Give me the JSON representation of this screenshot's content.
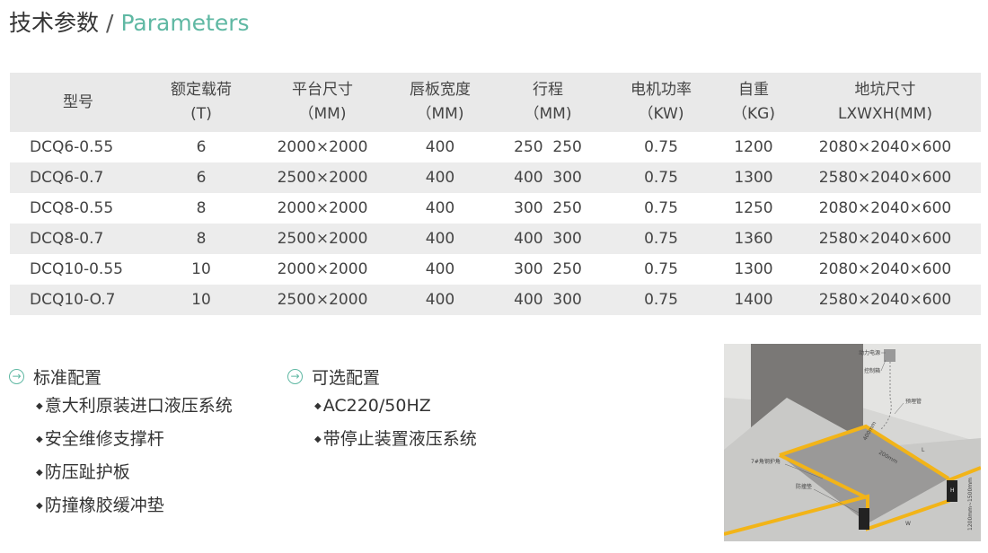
{
  "title": {
    "cn": "技术参数",
    "sep": "/",
    "en": "Parameters"
  },
  "table": {
    "headers": [
      {
        "l1": "型号",
        "l2": ""
      },
      {
        "l1": "额定载荷",
        "l2": "(T)"
      },
      {
        "l1": "平台尺寸",
        "l2": "（MM)"
      },
      {
        "l1": "唇板宽度",
        "l2": "（MM)"
      },
      {
        "l1": "行程",
        "l2": "（MM)"
      },
      {
        "l1": "电机功率",
        "l2": "（KW)"
      },
      {
        "l1": "自重",
        "l2": "（KG)"
      },
      {
        "l1": "地坑尺寸",
        "l2": "LXWXH(MM)"
      }
    ],
    "rows": [
      [
        "DCQ6-0.55",
        "6",
        "2000×2000",
        "400",
        "250  250",
        "0.75",
        "1200",
        "2080×2040×600"
      ],
      [
        "DCQ6-0.7",
        "6",
        "2500×2000",
        "400",
        "400  300",
        "0.75",
        "1300",
        "2580×2040×600"
      ],
      [
        "DCQ8-0.55",
        "8",
        "2000×2000",
        "400",
        "300  250",
        "0.75",
        "1250",
        "2080×2040×600"
      ],
      [
        "DCQ8-0.7",
        "8",
        "2500×2000",
        "400",
        "400  300",
        "0.75",
        "1360",
        "2580×2040×600"
      ],
      [
        "DCQ10-0.55",
        "10",
        "2000×2000",
        "400",
        "300  250",
        "0.75",
        "1300",
        "2080×2040×600"
      ],
      [
        "DCQ10-O.7",
        "10",
        "2500×2000",
        "400",
        "400  300",
        "0.75",
        "1400",
        "2580×2040×600"
      ]
    ]
  },
  "standard": {
    "title": "标准配置",
    "items": [
      "意大利原装进口液压系统",
      "安全维修支撑杆",
      "防压趾护板",
      "防撞橡胶缓冲垫"
    ]
  },
  "optional": {
    "title": "可选配置",
    "items": [
      "AC220/50HZ",
      "带停止装置液压系统"
    ]
  },
  "photo_labels": [
    "动力电源",
    "控制箱",
    "预埋管",
    "7#角钢护角",
    "防撞垫",
    "400mm",
    "200mm",
    "L",
    "W",
    "H",
    "1200mm~1500mm"
  ],
  "colors": {
    "accent": "#5fb8a3",
    "header_bg": "#e9e9e9",
    "curb": "#f2b418"
  },
  "icons": {
    "section": "circle-arrow-right-icon",
    "bullet": "diamond-bullet-icon"
  }
}
